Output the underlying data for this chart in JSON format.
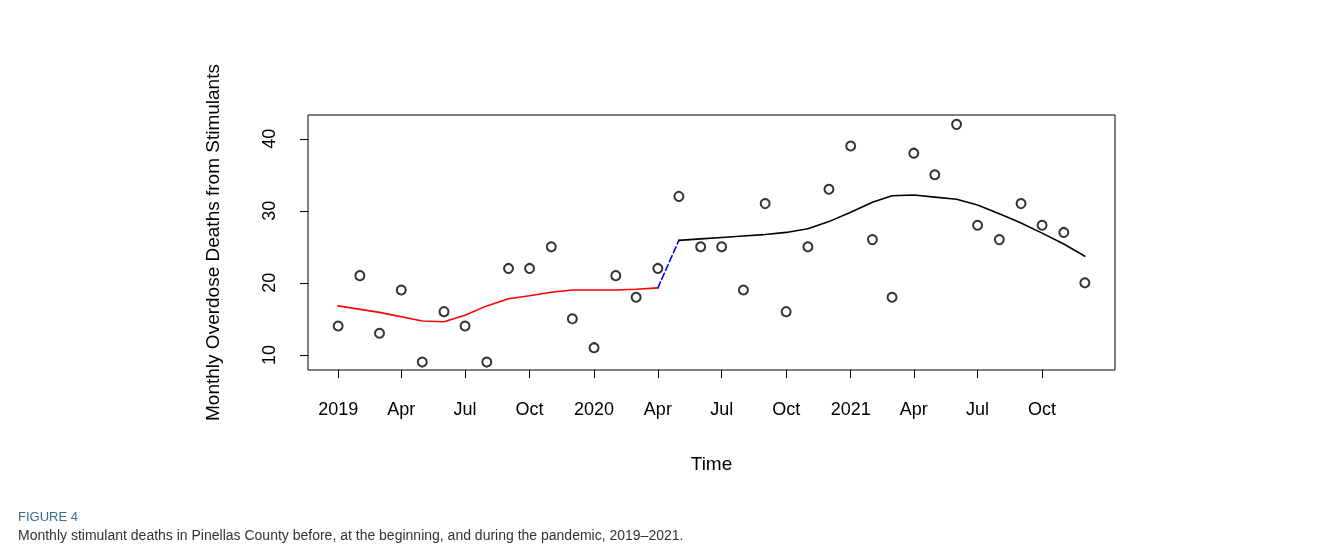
{
  "chart_data": {
    "type": "scatter",
    "xlabel": "Time",
    "ylabel": "Monthly Overdose Deaths from Stimulants",
    "x": [
      "2019-01",
      "2019-02",
      "2019-03",
      "2019-04",
      "2019-05",
      "2019-06",
      "2019-07",
      "2019-08",
      "2019-09",
      "2019-10",
      "2019-11",
      "2019-12",
      "2020-01",
      "2020-02",
      "2020-03",
      "2020-04",
      "2020-05",
      "2020-06",
      "2020-07",
      "2020-08",
      "2020-09",
      "2020-10",
      "2020-11",
      "2020-12",
      "2021-01",
      "2021-02",
      "2021-03",
      "2021-04",
      "2021-05",
      "2021-06",
      "2021-07",
      "2021-08",
      "2021-09",
      "2021-10",
      "2021-11",
      "2021-12"
    ],
    "series": [
      {
        "color": "#000000",
        "marker": "circle",
        "values": [
          14,
          21,
          13,
          19,
          9,
          16,
          14,
          9,
          22,
          22,
          25,
          15,
          11,
          21,
          18,
          22,
          32,
          25,
          25,
          19,
          31,
          16,
          25,
          33,
          39,
          26,
          18,
          38,
          35,
          42,
          28,
          26,
          31,
          28,
          27,
          20
        ]
      },
      {
        "type": "line",
        "color": "#ff0000",
        "marker": "none",
        "line_style": "solid",
        "x": [
          "2019-01",
          "2019-03",
          "2019-05",
          "2019-06",
          "2019-07",
          "2019-08",
          "2019-09",
          "2019-10",
          "2019-11",
          "2019-12",
          "2020-01",
          "2020-02",
          "2020-03",
          "2020-04"
        ],
        "values": [
          16.8,
          15.9,
          14.7,
          14.6,
          15.5,
          16.8,
          17.8,
          18.2,
          18.7,
          19.0,
          19.0,
          19.0,
          19.1,
          19.3
        ]
      },
      {
        "type": "line",
        "color": "#0000ff",
        "marker": "none",
        "line_style": "dashed",
        "x": [
          "2020-04",
          "2020-05"
        ],
        "values": [
          19.3,
          25.9
        ]
      },
      {
        "type": "line",
        "color": "#000000",
        "marker": "none",
        "line_style": "solid",
        "x": [
          "2020-05",
          "2020-06",
          "2020-07",
          "2020-08",
          "2020-09",
          "2020-10",
          "2020-11",
          "2020-12",
          "2021-01",
          "2021-02",
          "2021-03",
          "2021-04",
          "2021-05",
          "2021-06",
          "2021-07",
          "2021-08",
          "2021-09",
          "2021-10",
          "2021-11",
          "2021-12"
        ],
        "values": [
          25.9,
          26.1,
          26.3,
          26.5,
          26.7,
          27.0,
          27.5,
          28.5,
          29.8,
          31.2,
          32.1,
          32.2,
          31.9,
          31.6,
          30.8,
          29.6,
          28.3,
          26.9,
          25.4,
          23.7
        ]
      }
    ],
    "xlim": [
      "2018-11-19",
      "2022-01-13"
    ],
    "xticks": [
      {
        "value": "2019-01",
        "label": "2019"
      },
      {
        "value": "2019-04",
        "label": "Apr"
      },
      {
        "value": "2019-07",
        "label": "Jul"
      },
      {
        "value": "2019-10",
        "label": "Oct"
      },
      {
        "value": "2020-01",
        "label": "2020"
      },
      {
        "value": "2020-04",
        "label": "Apr"
      },
      {
        "value": "2020-07",
        "label": "Jul"
      },
      {
        "value": "2020-10",
        "label": "Oct"
      },
      {
        "value": "2021-01",
        "label": "2021"
      },
      {
        "value": "2021-04",
        "label": "Apr"
      },
      {
        "value": "2021-07",
        "label": "Jul"
      },
      {
        "value": "2021-10",
        "label": "Oct"
      }
    ],
    "ylim": [
      7.9,
      43.3
    ],
    "yticks": [
      10,
      20,
      30,
      40
    ],
    "grid": false,
    "annotations": [
      "FIGURE 4",
      "Monthly stimulant deaths in Pinellas County before, at the beginning, and during the pandemic, 2019–2021."
    ]
  }
}
